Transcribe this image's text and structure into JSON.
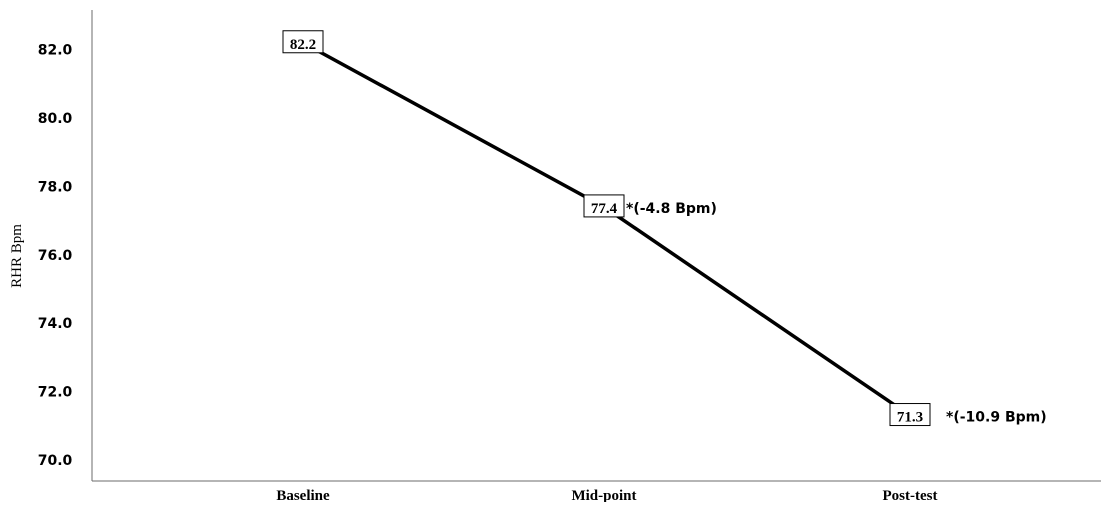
{
  "chart_data": {
    "type": "line",
    "categories": [
      "Baseline",
      "Mid-point",
      "Post-test"
    ],
    "series": [
      {
        "values": [
          82.2,
          77.4,
          71.3
        ]
      }
    ],
    "data_labels": [
      "82.2",
      "77.4",
      "71.3"
    ],
    "annotations": [
      "",
      "*(-4.8 Bpm)",
      "*(-10.9 Bpm)"
    ],
    "ylabel": "RHR Bpm",
    "xlabel": "",
    "title": "",
    "ylim": [
      69.6,
      84.9
    ],
    "yticks": [
      70.0,
      72.0,
      74.0,
      76.0,
      78.0,
      80.0,
      82.0
    ],
    "grid": false,
    "colors": {
      "line": "#000000",
      "axis": "#6b6b6b",
      "text": "#000000",
      "label_box_border": "#000000",
      "label_box_fill": "#ffffff"
    }
  }
}
